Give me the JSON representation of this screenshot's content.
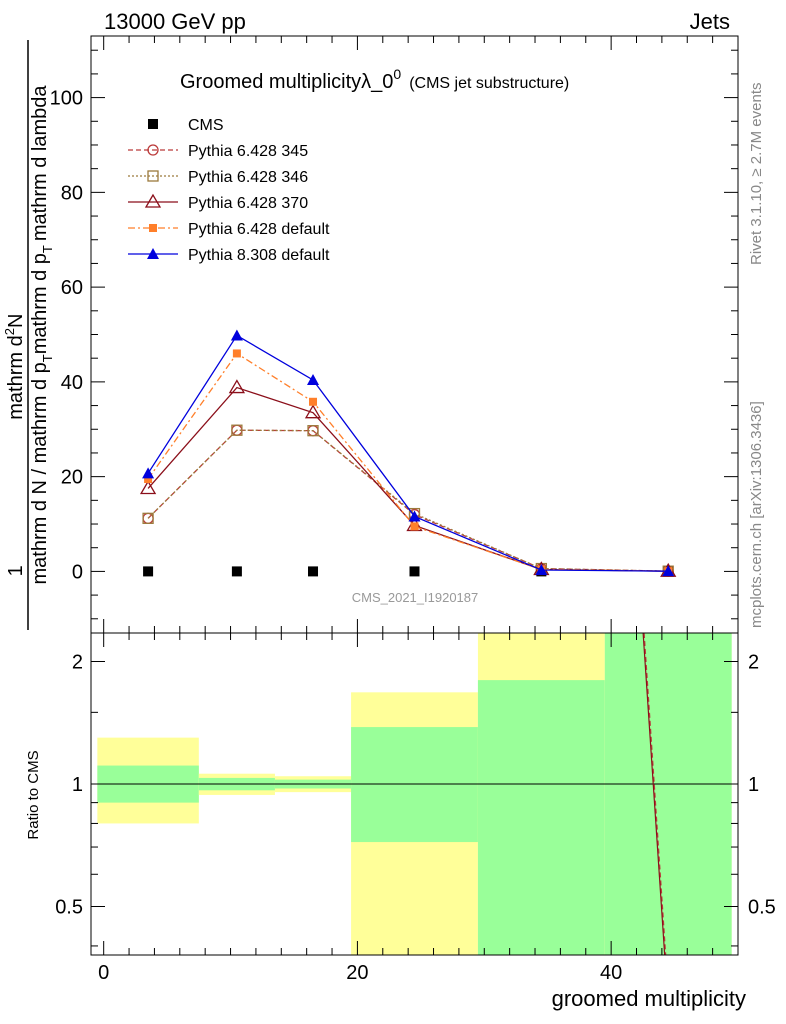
{
  "header": {
    "left": "13000 GeV pp",
    "right": "Jets"
  },
  "side_labels": {
    "rivet": "Rivet 3.1.10, ≥ 2.7M events",
    "mcplots": "mcplots.cern.ch [arXiv:1306.3436]"
  },
  "watermark": "CMS_2021_I1920187",
  "chart_data": [
    {
      "type": "line",
      "title_main": "Groomed multiplicityλ_0",
      "title_sup": "0",
      "title_sub": "(CMS jet substructure)",
      "ylabel": {
        "numerator_prefix": "1",
        "numerator": "mathrm d",
        "numerator_sup": "2",
        "numerator_tail": "N",
        "denominator": "mathrm d N / mathrm d p",
        "denominator_sub": "T",
        "denominator_tail": "mathrm d p",
        "denominator_sub2": "T",
        "denominator_tail2": "mathrm d lambda"
      },
      "xlim": [
        -1,
        50
      ],
      "ylim": [
        -13,
        113
      ],
      "yticks": [
        0,
        20,
        40,
        60,
        80,
        100
      ],
      "x": [
        3.5,
        10.5,
        16.5,
        24.5,
        34.5,
        44.5
      ],
      "series": [
        {
          "name": "CMS",
          "values": [
            0,
            0,
            0,
            0,
            0,
            0
          ],
          "color": "#000000",
          "marker": "filled-square",
          "line": "none"
        },
        {
          "name": "Pythia 6.428 345",
          "values": [
            11.2,
            29.8,
            29.7,
            12.0,
            0.6,
            0.05
          ],
          "color": "#bb3a3a",
          "marker": "open-circle",
          "line": "dashed"
        },
        {
          "name": "Pythia 6.428 346",
          "values": [
            11.2,
            29.8,
            29.7,
            12.2,
            0.6,
            0.05
          ],
          "color": "#9c7a3c",
          "marker": "open-square",
          "line": "dotted"
        },
        {
          "name": "Pythia 6.428 370",
          "values": [
            17.5,
            38.8,
            33.5,
            9.7,
            0.4,
            0.05
          ],
          "color": "#8b0f1a",
          "marker": "open-triangle",
          "line": "solid"
        },
        {
          "name": "Pythia 6.428 default",
          "values": [
            19.5,
            46.0,
            35.8,
            9.5,
            0.4,
            0.05
          ],
          "color": "#ff7f2a",
          "marker": "filled-square-small",
          "line": "dashdot"
        },
        {
          "name": "Pythia 8.308 default",
          "values": [
            20.7,
            49.8,
            40.4,
            11.6,
            0.3,
            0.05
          ],
          "color": "#0000dd",
          "marker": "filled-triangle",
          "line": "solid"
        }
      ]
    },
    {
      "type": "area",
      "ylabel": "Ratio to CMS",
      "xlabel": "groomed multiplicity",
      "xlim": [
        -1,
        50
      ],
      "ylim": [
        0.38,
        2.35
      ],
      "scale": "log",
      "yticks": [
        0.5,
        1,
        2
      ],
      "xticks": [
        0,
        20,
        40
      ],
      "bins": [
        {
          "lo": -0.5,
          "hi": 7.5,
          "inner": [
            0.9,
            1.11
          ],
          "outer": [
            0.8,
            1.3
          ]
        },
        {
          "lo": 7.5,
          "hi": 13.5,
          "inner": [
            0.965,
            1.035
          ],
          "outer": [
            0.94,
            1.06
          ]
        },
        {
          "lo": 13.5,
          "hi": 19.5,
          "inner": [
            0.975,
            1.025
          ],
          "outer": [
            0.955,
            1.045
          ]
        },
        {
          "lo": 19.5,
          "hi": 29.5,
          "inner": [
            0.72,
            1.38
          ],
          "outer": [
            0.38,
            1.68
          ]
        },
        {
          "lo": 29.5,
          "hi": 39.5,
          "inner": [
            0.38,
            1.8
          ],
          "outer": [
            0.38,
            2.35
          ]
        },
        {
          "lo": 39.5,
          "hi": 49.5,
          "inner": [
            0.38,
            2.35
          ],
          "outer": [
            0.38,
            2.35
          ]
        }
      ],
      "ratio_line": {
        "x": [
          42.6,
          44.3
        ],
        "values": [
          2.35,
          0.38
        ]
      }
    }
  ]
}
